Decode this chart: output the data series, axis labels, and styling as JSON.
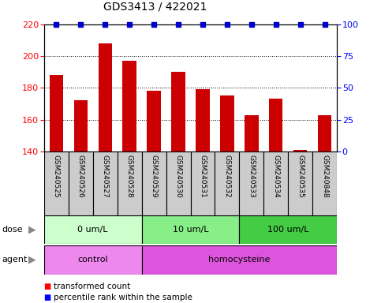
{
  "title": "GDS3413 / 422021",
  "samples": [
    "GSM240525",
    "GSM240526",
    "GSM240527",
    "GSM240528",
    "GSM240529",
    "GSM240530",
    "GSM240531",
    "GSM240532",
    "GSM240533",
    "GSM240534",
    "GSM240535",
    "GSM240848"
  ],
  "bar_values": [
    188,
    172,
    208,
    197,
    178,
    190,
    179,
    175,
    163,
    173,
    141,
    163
  ],
  "percentile_values": [
    100,
    100,
    100,
    100,
    100,
    100,
    100,
    100,
    100,
    100,
    100,
    100
  ],
  "bar_color": "#cc0000",
  "percentile_color": "#0000cc",
  "ylim_left": [
    140,
    220
  ],
  "ylim_right": [
    0,
    100
  ],
  "yticks_left": [
    140,
    160,
    180,
    200,
    220
  ],
  "yticks_right": [
    0,
    25,
    50,
    75,
    100
  ],
  "dose_groups": [
    {
      "label": "0 um/L",
      "start": 0,
      "end": 4,
      "color": "#ccffcc"
    },
    {
      "label": "10 um/L",
      "start": 4,
      "end": 8,
      "color": "#88ee88"
    },
    {
      "label": "100 um/L",
      "start": 8,
      "end": 12,
      "color": "#44cc44"
    }
  ],
  "agent_groups": [
    {
      "label": "control",
      "start": 0,
      "end": 4,
      "color": "#ee88ee"
    },
    {
      "label": "homocysteine",
      "start": 4,
      "end": 12,
      "color": "#dd55dd"
    }
  ],
  "dose_label": "dose",
  "agent_label": "agent",
  "bar_width": 0.55,
  "sample_cell_color": "#cccccc",
  "grid_linestyle": "dotted"
}
